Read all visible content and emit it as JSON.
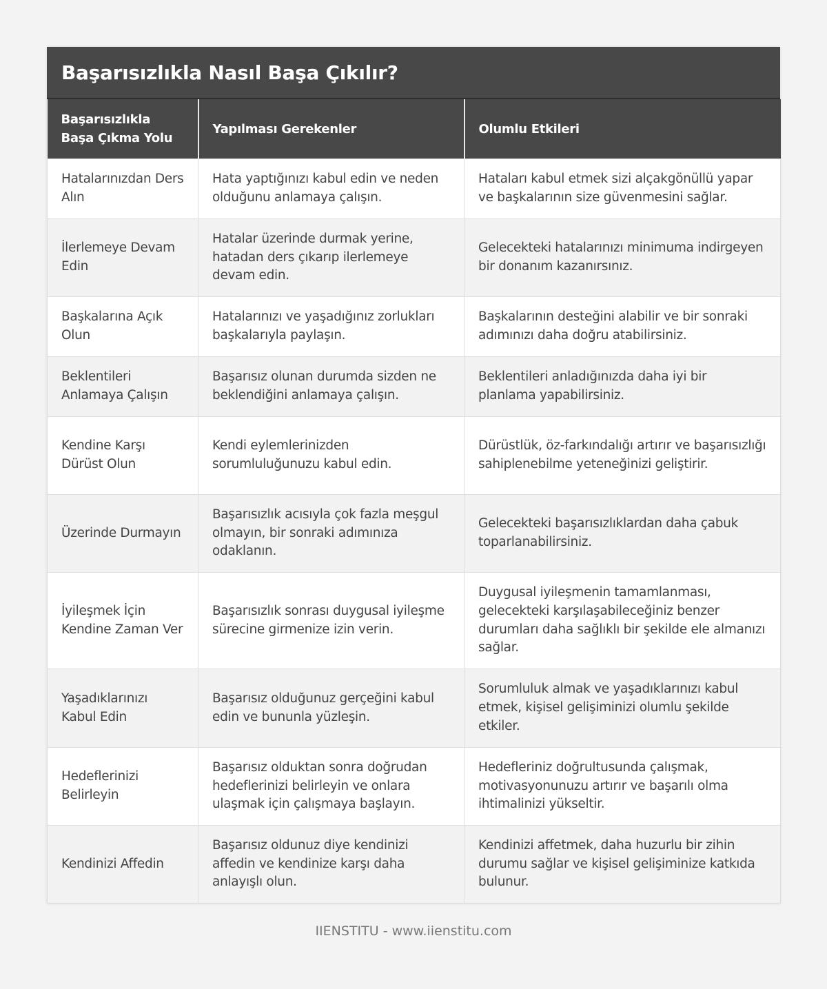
{
  "title": "Başarısızlıkla Nasıl Başa Çıkılır?",
  "columns": [
    "Başarısızlıkla Başa Çıkma Yolu",
    "Yapılması Gerekenler",
    "Olumlu Etkileri"
  ],
  "rows": [
    [
      "Hatalarınızdan Ders Alın",
      "Hata yaptığınızı kabul edin ve neden olduğunu anlamaya çalışın.",
      "Hataları kabul etmek sizi alçakgönüllü yapar ve başkalarının size güvenmesini sağlar."
    ],
    [
      "İlerlemeye Devam Edin",
      "Hatalar üzerinde durmak yerine, hatadan ders çıkarıp ilerlemeye devam edin.",
      "Gelecekteki hatalarınızı minimuma indirgeyen bir donanım kazanırsınız."
    ],
    [
      "Başkalarına Açık Olun",
      "Hatalarınızı ve yaşadığınız zorlukları başkalarıyla paylaşın.",
      "Başkalarının desteğini alabilir ve bir sonraki adımınızı daha doğru atabilirsiniz."
    ],
    [
      "Beklentileri Anlamaya Çalışın",
      "Başarısız olunan durumda sizden ne beklendiğini anlamaya çalışın.",
      "Beklentileri anladığınızda daha iyi bir planlama yapabilirsiniz."
    ],
    [
      "Kendine Karşı Dürüst Olun",
      "Kendi eylemlerinizden sorumluluğunuzu kabul edin.",
      "Dürüstlük, öz-farkındalığı artırır ve başarısızlığı sahiplenebilme yeteneğinizi geliştirir."
    ],
    [
      "Üzerinde Durmayın",
      "Başarısızlık acısıyla çok fazla meşgul olmayın, bir sonraki adımınıza odaklanın.",
      "Gelecekteki başarısızlıklardan daha çabuk toparlanabilirsiniz."
    ],
    [
      "İyileşmek İçin Kendine Zaman Ver",
      "Başarısızlık sonrası duygusal iyileşme sürecine girmenize izin verin.",
      "Duygusal iyileşmenin tamamlanması, gelecekteki karşılaşabileceğiniz benzer durumları daha sağlıklı bir şekilde ele almanızı sağlar."
    ],
    [
      "Yaşadıklarınızı Kabul Edin",
      "Başarısız olduğunuz gerçeğini kabul edin ve bununla yüzleşin.",
      "Sorumluluk almak ve yaşadıklarınızı kabul etmek, kişisel gelişiminizi olumlu şekilde etkiler."
    ],
    [
      "Hedeflerinizi Belirleyin",
      "Başarısız olduktan sonra doğrudan hedeflerinizi belirleyin ve onlara ulaşmak için çalışmaya başlayın.",
      "Hedefleriniz doğrultusunda çalışmak, motivasyonunuzu artırır ve başarılı olma ihtimalinizi yükseltir."
    ],
    [
      "Kendinizi Affedin",
      "Başarısız oldunuz diye kendinizi affedin ve kendinize karşı daha anlayışlı olun.",
      "Kendinizi affetmek, daha huzurlu bir zihin durumu sağlar ve kişisel gelişiminize katkıda bulunur."
    ]
  ],
  "footer": "IIENSTITU - www.iienstitu.com"
}
